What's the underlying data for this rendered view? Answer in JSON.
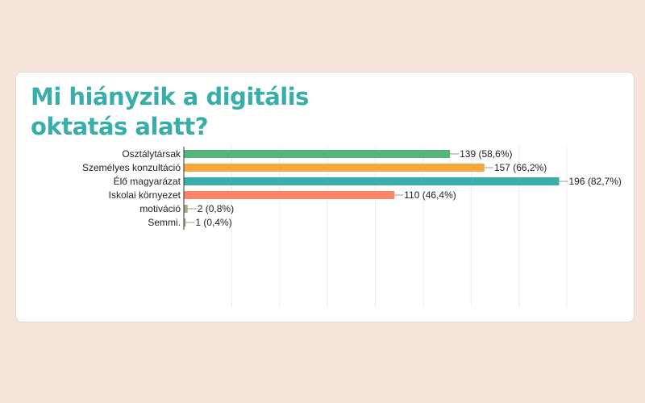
{
  "page": {
    "title_line1": "Mi hiányzik a digitális",
    "title_line2": "oktatás alatt?",
    "background": "#f7e4da",
    "accent": "#38aeaa"
  },
  "chart_data": {
    "type": "bar",
    "orientation": "horizontal",
    "title": "Mi hiányzik a digitális oktatás alatt?",
    "categories": [
      "Osztálytársak",
      "Személyes konzultáció",
      "Élő magyarázat",
      "Iskolai környezet",
      "motiváció",
      "Semmi."
    ],
    "values": [
      139,
      157,
      196,
      110,
      2,
      1
    ],
    "value_labels": [
      "139 (58,6%)",
      "157 (66,2%)",
      "196 (82,7%)",
      "110 (46,4%)",
      "2 (0,8%)",
      "1 (0,4%)"
    ],
    "colors": [
      "#53b57c",
      "#f5a93b",
      "#3aaeaa",
      "#ff8466",
      "#a9a98c",
      "#b8a17c"
    ],
    "xlim": [
      0,
      200
    ],
    "grid": true,
    "legend": "none"
  }
}
